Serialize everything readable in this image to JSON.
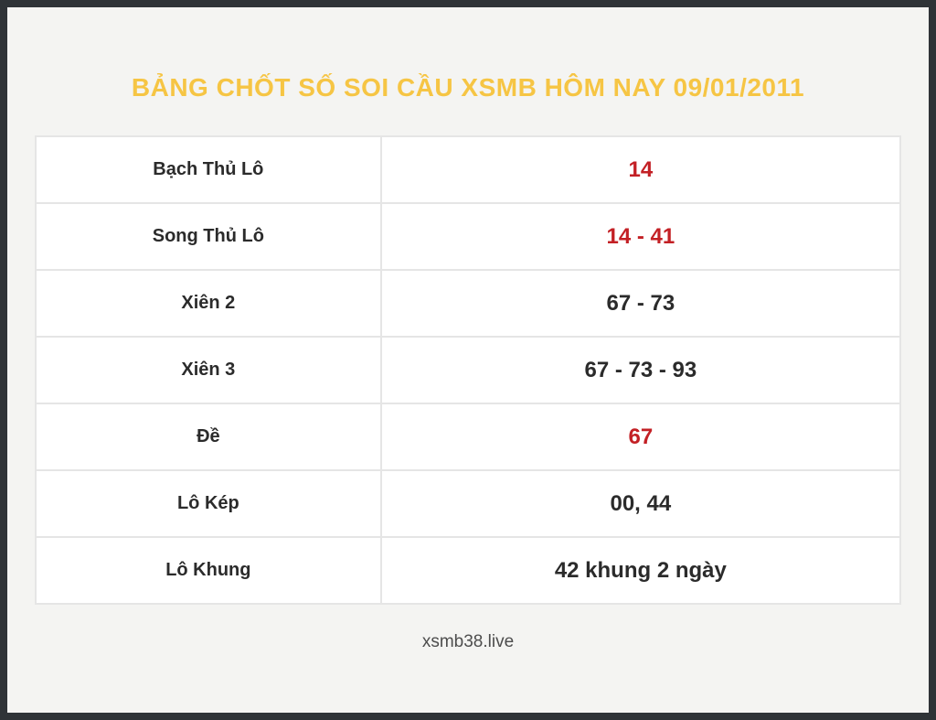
{
  "page": {
    "title": "BẢNG CHỐT SỐ SOI CẦU XSMB HÔM NAY 09/01/2011",
    "footer": "xsmb38.live"
  },
  "table": {
    "rows": [
      {
        "label": "Bạch Thủ Lô",
        "value": "14",
        "highlight": true
      },
      {
        "label": "Song Thủ Lô",
        "value": "14 - 41",
        "highlight": true
      },
      {
        "label": "Xiên 2",
        "value": "67 - 73",
        "highlight": false
      },
      {
        "label": "Xiên 3",
        "value": "67 - 73 - 93",
        "highlight": false
      },
      {
        "label": "Đề",
        "value": "67",
        "highlight": true
      },
      {
        "label": "Lô Kép",
        "value": "00, 44",
        "highlight": false
      },
      {
        "label": "Lô Khung",
        "value": "42 khung 2 ngày",
        "highlight": false
      }
    ]
  },
  "colors": {
    "frame_border": "#2f3337",
    "background": "#f4f4f2",
    "title_gold": "#f6c544",
    "value_red": "#c32025",
    "text_dark": "#2b2b2b",
    "grid_line": "#e5e5e5"
  }
}
